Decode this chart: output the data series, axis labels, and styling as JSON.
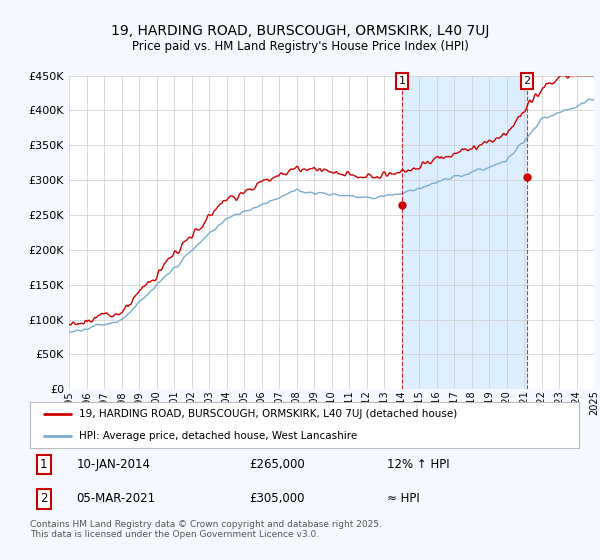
{
  "title": "19, HARDING ROAD, BURSCOUGH, ORMSKIRK, L40 7UJ",
  "subtitle": "Price paid vs. HM Land Registry's House Price Index (HPI)",
  "ylim": [
    0,
    450000
  ],
  "yticks": [
    0,
    50000,
    100000,
    150000,
    200000,
    250000,
    300000,
    350000,
    400000,
    450000
  ],
  "xmin": 1995,
  "xmax": 2025,
  "red_color": "#cc0000",
  "blue_color": "#7aadcc",
  "shade_color": "#ddeeff",
  "vline1_x": 2014.03,
  "vline2_x": 2021.17,
  "dot1_y": 265000,
  "dot2_y": 305000,
  "legend_line1": "19, HARDING ROAD, BURSCOUGH, ORMSKIRK, L40 7UJ (detached house)",
  "legend_line2": "HPI: Average price, detached house, West Lancashire",
  "ann1_num": "1",
  "ann1_date": "10-JAN-2014",
  "ann1_price": "£265,000",
  "ann1_note": "12% ↑ HPI",
  "ann2_num": "2",
  "ann2_date": "05-MAR-2021",
  "ann2_price": "£305,000",
  "ann2_note": "≈ HPI",
  "footer": "Contains HM Land Registry data © Crown copyright and database right 2025.\nThis data is licensed under the Open Government Licence v3.0.",
  "bg_color": "#f5f8ff",
  "plot_bg": "#ffffff"
}
